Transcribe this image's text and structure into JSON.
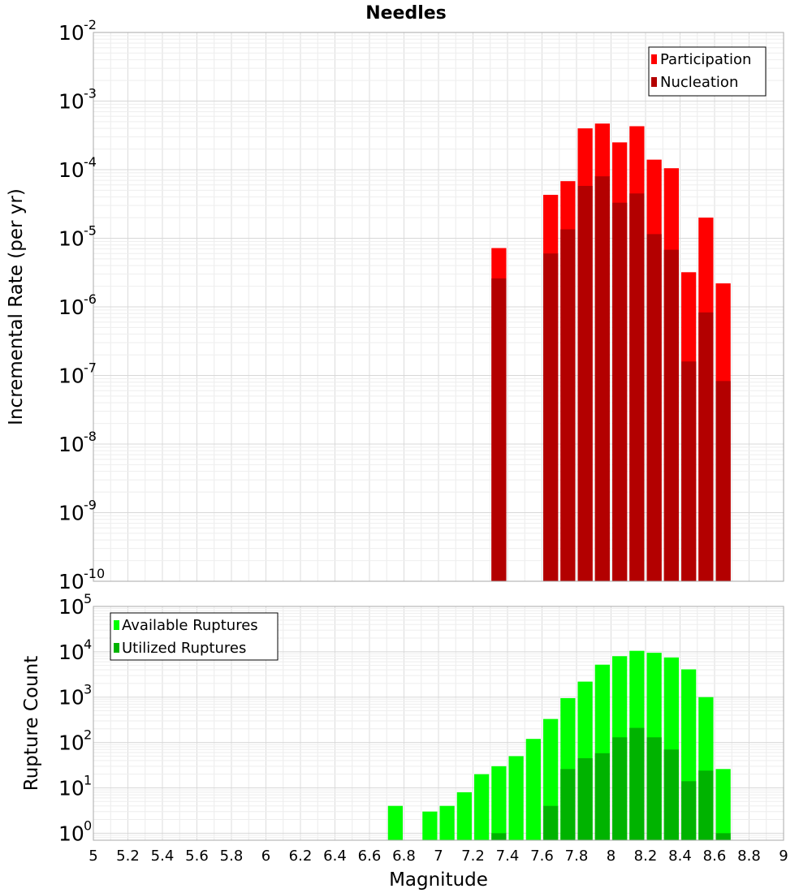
{
  "chart_data": [
    {
      "type": "bar",
      "scale": "log",
      "title": "Needles",
      "ylabel": "Incremental Rate (per yr)",
      "xlabel": "",
      "xlim": [
        5,
        9
      ],
      "bin_width": 0.1,
      "ylim": [
        1e-10,
        0.01
      ],
      "y_ticks": [
        {
          "base": "10",
          "exp": "-2",
          "value": 0.01
        },
        {
          "base": "10",
          "exp": "-3",
          "value": 0.001
        },
        {
          "base": "10",
          "exp": "-4",
          "value": 0.0001
        },
        {
          "base": "10",
          "exp": "-5",
          "value": 1e-05
        },
        {
          "base": "10",
          "exp": "-6",
          "value": 1e-06
        },
        {
          "base": "10",
          "exp": "-7",
          "value": 1e-07
        },
        {
          "base": "10",
          "exp": "-8",
          "value": 1e-08
        },
        {
          "base": "10",
          "exp": "-9",
          "value": 1e-09
        },
        {
          "base": "10",
          "exp": "-10",
          "value": 1e-10
        }
      ],
      "legend": {
        "position": "top-right",
        "entries": [
          "Participation",
          "Nucleation"
        ]
      },
      "series": [
        {
          "name": "Participation",
          "color": "#ff0000",
          "x": [
            7.35,
            7.65,
            7.75,
            7.85,
            7.95,
            8.05,
            8.15,
            8.25,
            8.35,
            8.45,
            8.55,
            8.65
          ],
          "values": [
            7.2e-06,
            4.3e-05,
            6.8e-05,
            0.0004,
            0.00047,
            0.00025,
            0.00043,
            0.00014,
            0.000105,
            3.2e-06,
            2e-05,
            2.2e-06
          ]
        },
        {
          "name": "Nucleation",
          "color": "#b30000",
          "x": [
            7.35,
            7.65,
            7.75,
            7.85,
            7.95,
            8.05,
            8.15,
            8.25,
            8.35,
            8.45,
            8.55,
            8.65
          ],
          "values": [
            2.6e-06,
            6e-06,
            1.35e-05,
            5.8e-05,
            8e-05,
            3.3e-05,
            4.5e-05,
            1.15e-05,
            6.8e-06,
            1.6e-07,
            8.3e-07,
            8.3e-08
          ]
        }
      ]
    },
    {
      "type": "bar",
      "scale": "log",
      "title": "",
      "ylabel": "Rupture Count",
      "xlabel": "Magnitude",
      "xlim": [
        5,
        9
      ],
      "bin_width": 0.1,
      "ylim": [
        0.7,
        100000
      ],
      "y_ticks": [
        {
          "base": "10",
          "exp": "5",
          "value": 100000.0
        },
        {
          "base": "10",
          "exp": "4",
          "value": 10000.0
        },
        {
          "base": "10",
          "exp": "3",
          "value": 1000.0
        },
        {
          "base": "10",
          "exp": "2",
          "value": 100.0
        },
        {
          "base": "10",
          "exp": "1",
          "value": 10.0
        },
        {
          "base": "10",
          "exp": "0",
          "value": 1
        }
      ],
      "x_ticks": [
        "5",
        "5.2",
        "5.4",
        "5.6",
        "5.8",
        "6",
        "6.2",
        "6.4",
        "6.6",
        "6.8",
        "7",
        "7.2",
        "7.4",
        "7.6",
        "7.8",
        "8",
        "8.2",
        "8.4",
        "8.6",
        "8.8",
        "9"
      ],
      "legend": {
        "position": "top-left",
        "entries": [
          "Available Ruptures",
          "Utilized Ruptures"
        ]
      },
      "series": [
        {
          "name": "Available Ruptures",
          "color": "#00ff00",
          "x": [
            6.75,
            6.95,
            7.05,
            7.15,
            7.25,
            7.35,
            7.45,
            7.55,
            7.65,
            7.75,
            7.85,
            7.95,
            8.05,
            8.15,
            8.25,
            8.35,
            8.45,
            8.55,
            8.65
          ],
          "values": [
            4,
            3,
            4,
            8,
            20,
            30,
            50,
            120,
            330,
            950,
            2200,
            5200,
            8000,
            10500,
            9500,
            7500,
            4100,
            1000,
            26
          ]
        },
        {
          "name": "Utilized Ruptures",
          "color": "#00b300",
          "x": [
            7.35,
            7.65,
            7.75,
            7.85,
            7.95,
            8.05,
            8.15,
            8.25,
            8.35,
            8.45,
            8.55,
            8.65
          ],
          "values": [
            1,
            4,
            26,
            45,
            58,
            130,
            210,
            130,
            70,
            14,
            24,
            1
          ]
        }
      ]
    }
  ]
}
